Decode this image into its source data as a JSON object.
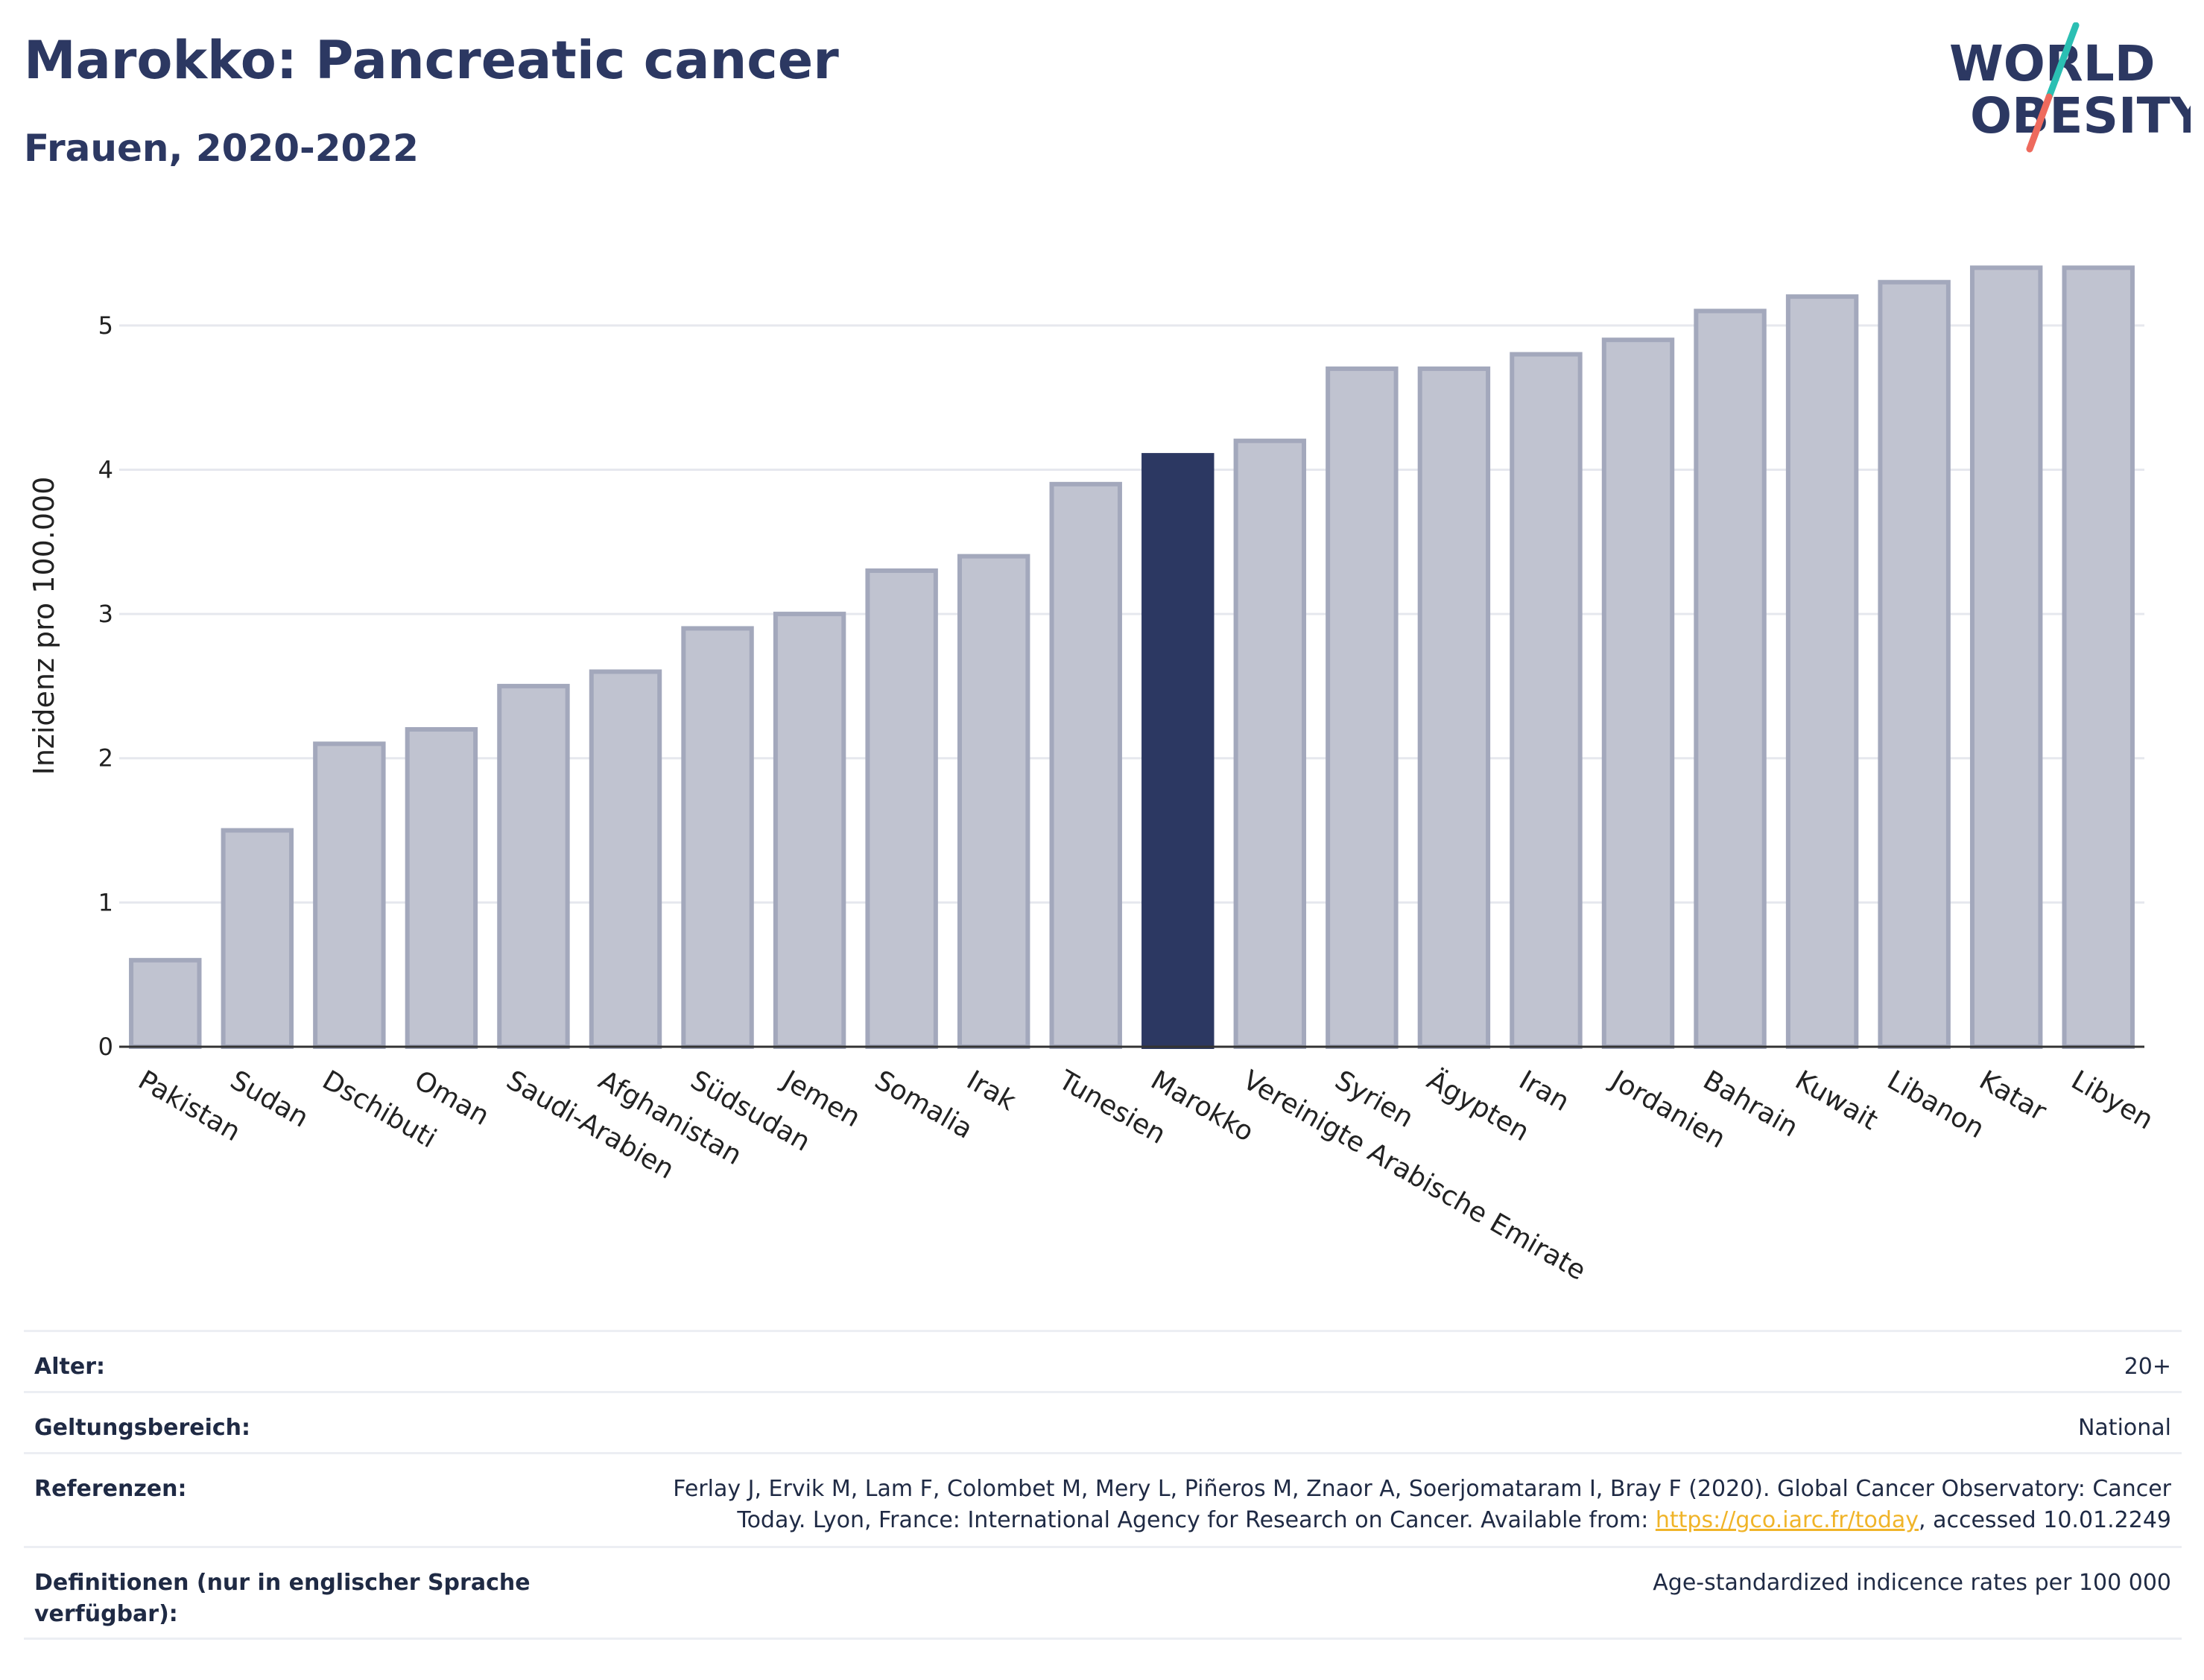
{
  "header": {
    "title": "Marokko: Pancreatic cancer",
    "subtitle": "Frauen, 2020-2022"
  },
  "logo": {
    "line1": "WORLD",
    "line2": "OBESITY",
    "colors": {
      "text": "#2c3862",
      "slash_top": "#2bbfb3",
      "slash_bottom": "#ee6a5d"
    }
  },
  "chart_data": {
    "type": "bar",
    "title": "",
    "xlabel": "",
    "ylabel": "Inzidenz pro 100.000",
    "ylim": [
      0,
      5.5
    ],
    "yticks": [
      0,
      1,
      2,
      3,
      4,
      5
    ],
    "grid": true,
    "highlight": "Marokko",
    "colors": {
      "bar": "#c0c3d0",
      "bar_border": "#a3a8bc",
      "highlight": "#2c3862",
      "grid": "#e6e8ee",
      "axis": "#333333"
    },
    "categories": [
      "Pakistan",
      "Sudan",
      "Dschibuti",
      "Oman",
      "Saudi-Arabien",
      "Afghanistan",
      "Südsudan",
      "Jemen",
      "Somalia",
      "Irak",
      "Tunesien",
      "Marokko",
      "Vereinigte Arabische Emirate",
      "Syrien",
      "Ägypten",
      "Iran",
      "Jordanien",
      "Bahrain",
      "Kuwait",
      "Libanon",
      "Katar",
      "Libyen"
    ],
    "values": [
      0.6,
      1.5,
      2.1,
      2.2,
      2.5,
      2.6,
      2.9,
      3.0,
      3.3,
      3.4,
      3.9,
      4.1,
      4.2,
      4.7,
      4.7,
      4.8,
      4.9,
      5.1,
      5.2,
      5.3,
      5.4,
      5.4
    ]
  },
  "meta": {
    "age_label": "Alter:",
    "age_value": "20+",
    "scope_label": "Geltungsbereich:",
    "scope_value": "National",
    "ref_label": "Referenzen:",
    "ref_line1": "Ferlay J, Ervik M, Lam F, Colombet M, Mery L, Piñeros M, Znaor A, Soerjomataram I, Bray F (2020). Global Cancer Observatory: Cancer",
    "ref_line2_pre": "Today. Lyon, France: International Agency for Research on Cancer. Available from: ",
    "ref_link": "https://gco.iarc.fr/today",
    "ref_line2_post": ", accessed 10.01.2249",
    "def_label": "Definitionen (nur in englischer Sprache verfügbar):",
    "def_value": "Age-standardized indicence rates per 100 000"
  }
}
